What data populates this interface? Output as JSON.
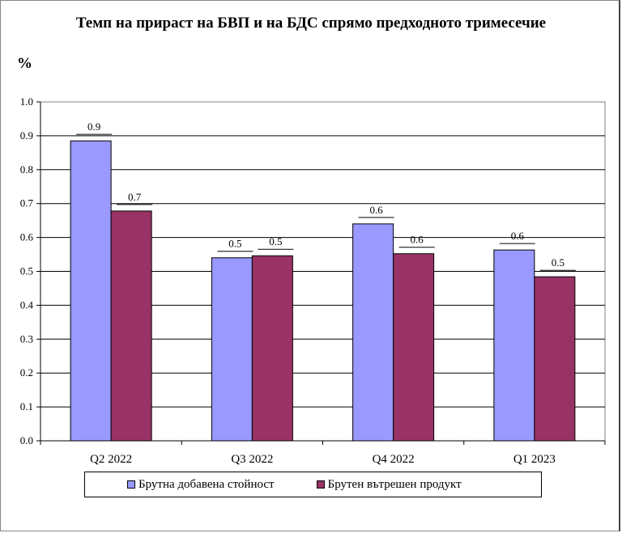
{
  "chart_data": {
    "type": "bar",
    "title": "Темп на прираст на БВП и на БДС спрямо предходното тримесечие",
    "ylabel": "%",
    "categories": [
      "Q2 2022",
      "Q3 2022",
      "Q4 2022",
      "Q1 2023"
    ],
    "series": [
      {
        "name": "Брутна добавена стойност",
        "color": "#9999ff",
        "values": [
          0.885,
          0.54,
          0.64,
          0.563
        ],
        "labels": [
          "0.9",
          "0.5",
          "0.6",
          "0.6"
        ]
      },
      {
        "name": "Брутен вътрешен продукт",
        "color": "#993366",
        "values": [
          0.678,
          0.546,
          0.552,
          0.484
        ],
        "labels": [
          "0.7",
          "0.5",
          "0.6",
          "0.5"
        ]
      }
    ],
    "ylim": [
      0,
      1.0
    ],
    "yticks": [
      "0.0",
      "0.1",
      "0.2",
      "0.3",
      "0.4",
      "0.5",
      "0.6",
      "0.7",
      "0.8",
      "0.9",
      "1.0"
    ],
    "grid": true,
    "legend": "bottom"
  }
}
